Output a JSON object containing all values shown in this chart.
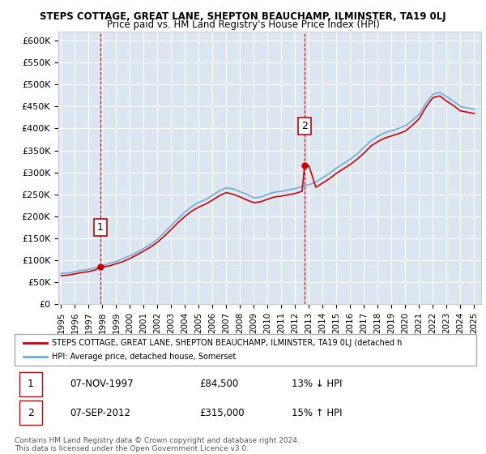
{
  "title": "STEPS COTTAGE, GREAT LANE, SHEPTON BEAUCHAMP, ILMINSTER, TA19 0LJ",
  "subtitle": "Price paid vs. HM Land Registry's House Price Index (HPI)",
  "legend_line1": "STEPS COTTAGE, GREAT LANE, SHEPTON BEAUCHAMP, ILMINSTER, TA19 0LJ (detached h",
  "legend_line2": "HPI: Average price, detached house, Somerset",
  "footer1": "Contains HM Land Registry data © Crown copyright and database right 2024.",
  "footer2": "This data is licensed under the Open Government Licence v3.0.",
  "annotation1": {
    "label": "1",
    "date": "07-NOV-1997",
    "price": "£84,500",
    "note": "13% ↓ HPI"
  },
  "annotation2": {
    "label": "2",
    "date": "07-SEP-2012",
    "price": "£315,000",
    "note": "15% ↑ HPI"
  },
  "sale1_x": 1997.85,
  "sale1_y": 84500,
  "sale2_x": 2012.68,
  "sale2_y": 315000,
  "ylim": [
    0,
    620000
  ],
  "yticks": [
    0,
    50000,
    100000,
    150000,
    200000,
    250000,
    300000,
    350000,
    400000,
    450000,
    500000,
    550000,
    600000
  ],
  "background_color": "#dce6f1",
  "plot_bg": "#dce6f1",
  "line_color_red": "#cc0000",
  "line_color_blue": "#6baed6",
  "grid_color": "#ffffff",
  "hpi_years": [
    1995,
    1996,
    1997,
    1998,
    1999,
    2000,
    2001,
    2002,
    2003,
    2004,
    2005,
    2006,
    2007,
    2008,
    2009,
    2010,
    2011,
    2012,
    2013,
    2014,
    2015,
    2016,
    2017,
    2018,
    2019,
    2020,
    2021,
    2022,
    2023,
    2024,
    2025
  ],
  "hpi_values": [
    72000,
    76000,
    82000,
    90000,
    100000,
    115000,
    130000,
    155000,
    185000,
    215000,
    235000,
    255000,
    265000,
    255000,
    245000,
    255000,
    258000,
    265000,
    275000,
    295000,
    315000,
    335000,
    365000,
    385000,
    395000,
    410000,
    445000,
    480000,
    465000,
    445000,
    440000
  ],
  "hpi_years_fine": [
    1995.0,
    1995.5,
    1996.0,
    1996.5,
    1997.0,
    1997.5,
    1998.0,
    1998.5,
    1999.0,
    1999.5,
    2000.0,
    2000.5,
    2001.0,
    2001.5,
    2002.0,
    2002.5,
    2003.0,
    2003.5,
    2004.0,
    2004.5,
    2005.0,
    2005.5,
    2006.0,
    2006.5,
    2007.0,
    2007.5,
    2008.0,
    2008.5,
    2009.0,
    2009.5,
    2010.0,
    2010.5,
    2011.0,
    2011.5,
    2012.0,
    2012.5,
    2013.0,
    2013.5,
    2014.0,
    2014.5,
    2015.0,
    2015.5,
    2016.0,
    2016.5,
    2017.0,
    2017.5,
    2018.0,
    2018.5,
    2019.0,
    2019.5,
    2020.0,
    2020.5,
    2021.0,
    2021.5,
    2022.0,
    2022.5,
    2023.0,
    2023.5,
    2024.0,
    2024.5,
    2025.0
  ],
  "hpi_values_fine": [
    70000,
    71000,
    74000,
    77000,
    79000,
    83000,
    87000,
    93000,
    97000,
    104000,
    110000,
    118000,
    127000,
    136000,
    148000,
    163000,
    179000,
    195000,
    210000,
    222000,
    232000,
    238000,
    248000,
    258000,
    265000,
    262000,
    256000,
    250000,
    242000,
    244000,
    250000,
    255000,
    257000,
    260000,
    263000,
    268000,
    272000,
    278000,
    288000,
    298000,
    310000,
    320000,
    330000,
    342000,
    357000,
    372000,
    382000,
    390000,
    395000,
    400000,
    406000,
    418000,
    432000,
    458000,
    478000,
    482000,
    472000,
    462000,
    450000,
    447000,
    444000
  ],
  "price_paid_years": [
    1995.0,
    1995.5,
    1996.0,
    1996.5,
    1997.0,
    1997.5,
    1997.85,
    1998.0,
    1998.5,
    1999.0,
    1999.5,
    2000.0,
    2000.5,
    2001.0,
    2001.5,
    2002.0,
    2002.5,
    2003.0,
    2003.5,
    2004.0,
    2004.5,
    2005.0,
    2005.5,
    2006.0,
    2006.5,
    2007.0,
    2007.5,
    2008.0,
    2008.5,
    2009.0,
    2009.5,
    2010.0,
    2010.5,
    2011.0,
    2011.5,
    2012.0,
    2012.5,
    2012.68,
    2013.0,
    2013.5,
    2014.0,
    2014.5,
    2015.0,
    2015.5,
    2016.0,
    2016.5,
    2017.0,
    2017.5,
    2018.0,
    2018.5,
    2019.0,
    2019.5,
    2020.0,
    2020.5,
    2021.0,
    2021.5,
    2022.0,
    2022.5,
    2023.0,
    2023.5,
    2024.0,
    2024.5,
    2025.0
  ],
  "price_paid_values": [
    65000,
    66000,
    69000,
    72000,
    74000,
    78000,
    84500,
    84500,
    87000,
    92000,
    97000,
    104000,
    112000,
    121000,
    130000,
    141000,
    155000,
    170000,
    186000,
    200000,
    212000,
    221000,
    228000,
    237000,
    247000,
    254000,
    250000,
    244000,
    237000,
    231000,
    233000,
    239000,
    244000,
    246000,
    249000,
    252000,
    257000,
    315000,
    315000,
    266000,
    276000,
    286000,
    298000,
    308000,
    318000,
    330000,
    344000,
    360000,
    370000,
    378000,
    383000,
    388000,
    394000,
    407000,
    422000,
    449000,
    470000,
    474000,
    462000,
    452000,
    440000,
    437000,
    434000
  ],
  "xticks": [
    1995,
    1996,
    1997,
    1998,
    1999,
    2000,
    2001,
    2002,
    2003,
    2004,
    2005,
    2006,
    2007,
    2008,
    2009,
    2010,
    2011,
    2012,
    2013,
    2014,
    2015,
    2016,
    2017,
    2018,
    2019,
    2020,
    2021,
    2022,
    2023,
    2024,
    2025
  ]
}
